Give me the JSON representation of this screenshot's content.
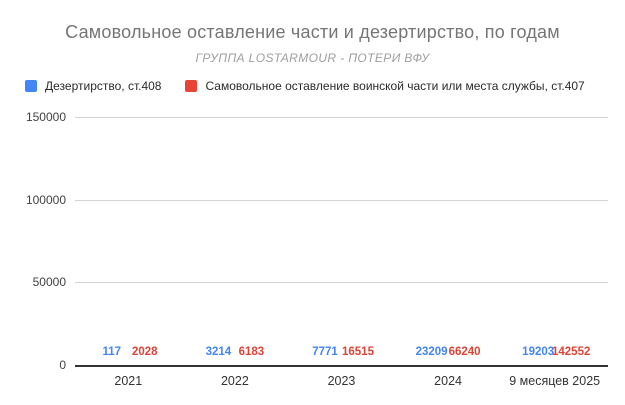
{
  "header": {
    "title": "Самовольное оставление части и дезертирство, по годам",
    "subtitle": "ГРУППА LOSTARMOUR - ПОТЕРИ ВФУ"
  },
  "legend": {
    "items": [
      {
        "label": "Дезертирство, ст.408",
        "color": "#4285F4"
      },
      {
        "label": "Самовольное оставление воинской части или места службы, ст.407",
        "color": "#E94335"
      }
    ]
  },
  "chart_data": {
    "type": "bar",
    "title": "Самовольное оставление части и дезертирство, по годам",
    "subtitle": "ГРУППА LOSTARMOUR - ПОТЕРИ ВФУ",
    "categories": [
      "2021",
      "2022",
      "2023",
      "2024",
      "9 месяцев 2025"
    ],
    "series": [
      {
        "name": "Дезертирство, ст.408",
        "color": "#4285F4",
        "label_color": "#4285F4",
        "values": [
          117,
          3214,
          7771,
          23209,
          19203
        ]
      },
      {
        "name": "Самовольное оставление воинской части или места службы, ст.407",
        "color": "#E94335",
        "label_color": "#DB4437",
        "values": [
          2028,
          6183,
          16515,
          66240,
          142552
        ]
      }
    ],
    "xlabel": "",
    "ylabel": "",
    "ylim": [
      0,
      150000
    ],
    "yticks": [
      0,
      50000,
      100000,
      150000
    ],
    "grid": true,
    "legend_position": "top",
    "data_labels": true,
    "colors": {
      "grid": "#d5d5d5",
      "axis": "#333333",
      "tick_text": "#424242",
      "title_text": "#757575",
      "subtitle_text": "#9e9e9e"
    }
  }
}
